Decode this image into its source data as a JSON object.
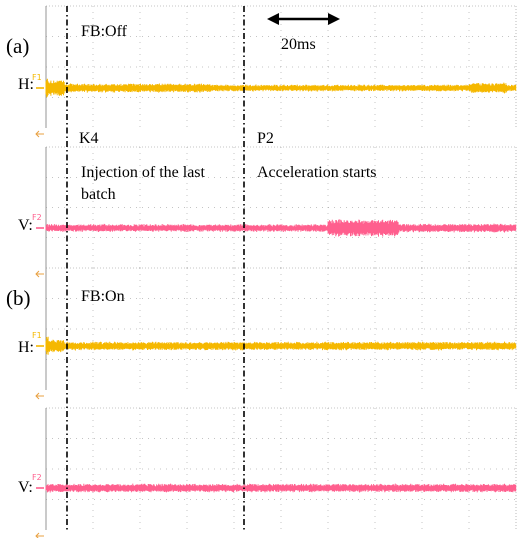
{
  "chart_data": [
    {
      "type": "line",
      "panel_label": "(a)",
      "feedback_label": "FB:Off",
      "scale_label": "20ms",
      "markers": [
        {
          "name": "K4",
          "annotation": "Injection of the last batch"
        },
        {
          "name": "P2",
          "annotation": "Acceleration starts"
        }
      ],
      "series": [
        {
          "name": "H:",
          "channel": "F1",
          "color": "#f5b800",
          "segments": [
            {
              "t": [
                0,
                0.5
              ],
              "amp": 0.85
            },
            {
              "t": [
                0.5,
                4
              ],
              "amp": 0.55
            },
            {
              "t": [
                4,
                35
              ],
              "amp": 0.3
            },
            {
              "t": [
                35,
                90
              ],
              "amp": 0.22
            },
            {
              "t": [
                90,
                98
              ],
              "amp": 0.35
            },
            {
              "t": [
                98,
                100
              ],
              "amp": 0.22
            }
          ]
        },
        {
          "name": "V:",
          "channel": "F2",
          "color": "#ff5f8e",
          "segments": [
            {
              "t": [
                0,
                60
              ],
              "amp": 0.25
            },
            {
              "t": [
                60,
                75
              ],
              "amp": 0.6
            },
            {
              "t": [
                75,
                100
              ],
              "amp": 0.28
            }
          ]
        }
      ],
      "grid": true
    },
    {
      "type": "line",
      "panel_label": "(b)",
      "feedback_label": "FB:On",
      "series": [
        {
          "name": "H:",
          "channel": "F1",
          "color": "#f5b800",
          "segments": [
            {
              "t": [
                0,
                0.5
              ],
              "amp": 0.65
            },
            {
              "t": [
                0.5,
                4
              ],
              "amp": 0.45
            },
            {
              "t": [
                4,
                100
              ],
              "amp": 0.28
            }
          ]
        },
        {
          "name": "V:",
          "channel": "F2",
          "color": "#ff5f8e",
          "segments": [
            {
              "t": [
                0,
                100
              ],
              "amp": 0.28
            }
          ]
        }
      ],
      "grid": true
    }
  ],
  "colors": {
    "ground_marker": "#e8a040",
    "grid": "#8a8a8a",
    "axis": "#7a7a7a"
  },
  "icons": {
    "ground_arrow": "left-arrow-icon",
    "scale_bar": "double-arrow-icon"
  }
}
